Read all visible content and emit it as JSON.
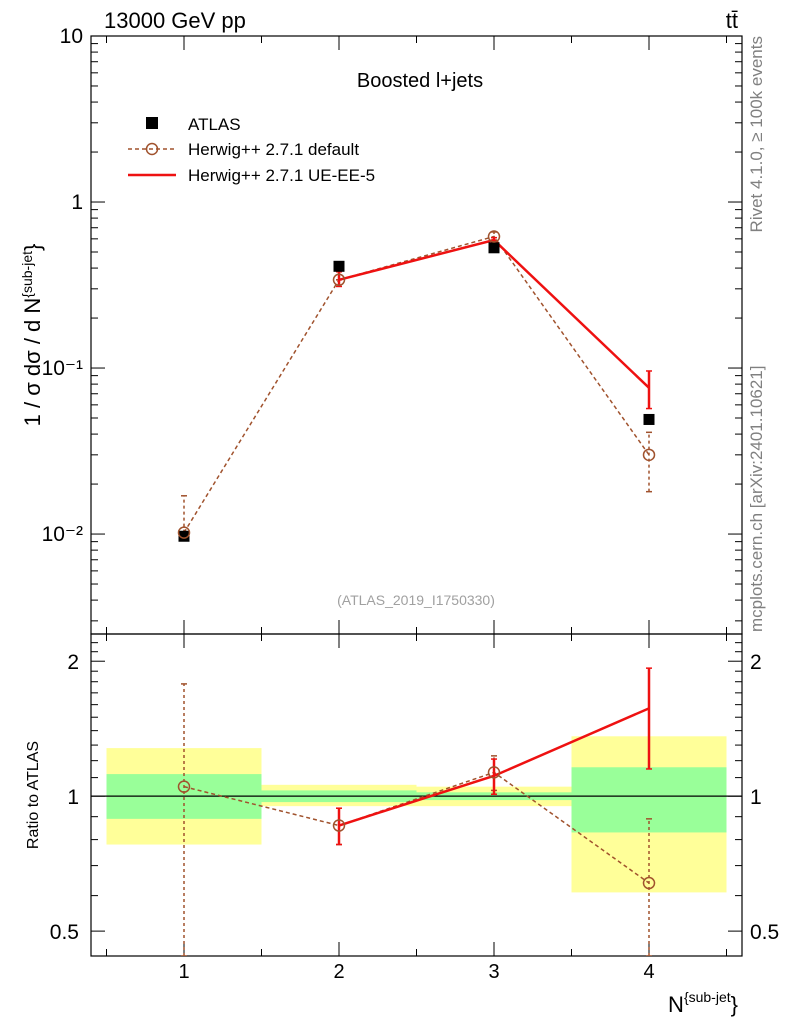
{
  "header": {
    "energy_label": "13000 GeV pp",
    "process_label": "tt̄"
  },
  "side_labels": {
    "rivet": "Rivet 4.1.0, ≥ 100k events",
    "mcplots": "mcplots.cern.ch [arXiv:2401.10621]"
  },
  "chart_data": [
    {
      "type": "line",
      "panel": "main",
      "title": "Boosted l+jets",
      "analysis_id": "(ATLAS_2019_I1750330)",
      "ylabel": "1 / σ dσ / d N^{sub-jet}",
      "yscale": "log",
      "ylim": [
        0.0025,
        10
      ],
      "xlim": [
        0.4,
        4.6
      ],
      "y_ticks": [
        {
          "value": 10,
          "label": "10"
        },
        {
          "value": 1,
          "label": "1"
        },
        {
          "value": 0.1,
          "label": "10⁻¹"
        },
        {
          "value": 0.01,
          "label": "10⁻²"
        }
      ],
      "legend": {
        "position": "top-left",
        "entries": [
          {
            "label": "ATLAS",
            "style": "square-marker"
          },
          {
            "label": "Herwig++ 2.7.1 default",
            "style": "dashed-circle"
          },
          {
            "label": "Herwig++ 2.7.1 UE-EE-5",
            "style": "solid-red"
          }
        ]
      },
      "series": [
        {
          "name": "ATLAS",
          "color": "#000000",
          "x": [
            1,
            2,
            3,
            4
          ],
          "values": [
            0.0097,
            0.41,
            0.53,
            0.049
          ]
        },
        {
          "name": "Herwig++ 2.7.1 default",
          "color": "#a0522d",
          "x": [
            1,
            2,
            3,
            4
          ],
          "values": [
            0.0102,
            0.34,
            0.62,
            0.03
          ],
          "err_low": [
            0.0102,
            0.34,
            0.59,
            0.018
          ],
          "err_high": [
            0.017,
            0.34,
            0.66,
            0.041
          ]
        },
        {
          "name": "Herwig++ 2.7.1 UE-EE-5",
          "color": "#ee1111",
          "x": [
            2,
            3,
            4
          ],
          "values": [
            0.34,
            0.59,
            0.076
          ],
          "err_low": [
            0.31,
            0.57,
            0.057
          ],
          "err_high": [
            0.38,
            0.61,
            0.096
          ]
        }
      ]
    },
    {
      "type": "line",
      "panel": "ratio",
      "ylabel": "Ratio to ATLAS",
      "xlabel": "N^{sub-jet}",
      "yscale": "log",
      "ylim": [
        0.44,
        2.3
      ],
      "xlim": [
        0.4,
        4.6
      ],
      "x_ticks": [
        "1",
        "2",
        "3",
        "4"
      ],
      "y_ticks": [
        {
          "value": 2,
          "label": "2"
        },
        {
          "value": 1,
          "label": "1"
        },
        {
          "value": 0.5,
          "label": "0.5"
        }
      ],
      "bands": [
        {
          "x_lo": 0.5,
          "x_hi": 1.5,
          "yellow": [
            0.78,
            1.28
          ],
          "green": [
            0.89,
            1.12
          ]
        },
        {
          "x_lo": 1.5,
          "x_hi": 2.5,
          "yellow": [
            0.95,
            1.06
          ],
          "green": [
            0.97,
            1.03
          ]
        },
        {
          "x_lo": 2.5,
          "x_hi": 3.5,
          "yellow": [
            0.95,
            1.05
          ],
          "green": [
            0.98,
            1.02
          ]
        },
        {
          "x_lo": 3.5,
          "x_hi": 4.5,
          "yellow": [
            0.61,
            1.36
          ],
          "green": [
            0.83,
            1.16
          ]
        }
      ],
      "series": [
        {
          "name": "Herwig++ 2.7.1 default",
          "color": "#a0522d",
          "x": [
            1,
            2,
            3,
            4
          ],
          "values": [
            1.05,
            0.86,
            1.13,
            0.64
          ],
          "err_low": [
            0.44,
            0.78,
            1.03,
            0.44
          ],
          "err_high": [
            1.78,
            0.94,
            1.23,
            0.89
          ]
        },
        {
          "name": "Herwig++ 2.7.1 UE-EE-5",
          "color": "#ee1111",
          "x": [
            2,
            3,
            4
          ],
          "values": [
            0.86,
            1.11,
            1.57
          ],
          "err_low": [
            0.78,
            1.01,
            1.15
          ],
          "err_high": [
            0.94,
            1.21,
            1.93
          ]
        }
      ]
    }
  ]
}
